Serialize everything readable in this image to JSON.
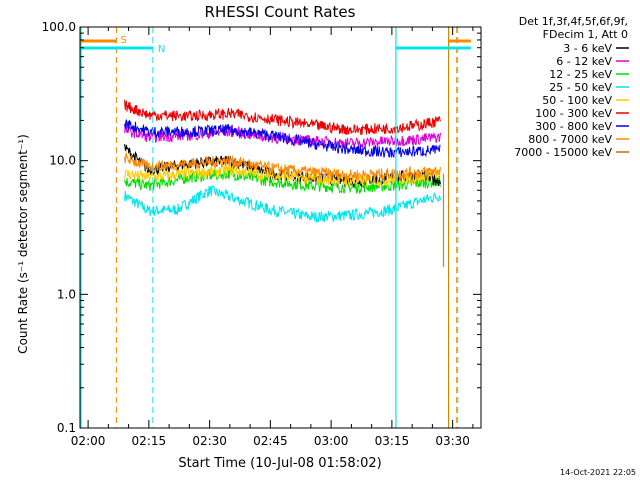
{
  "chart_data": {
    "type": "line",
    "title": "RHESSI Count Rates",
    "xlabel": "Start Time (10-Jul-08 01:58:02)",
    "ylabel": "Count Rate (s⁻¹ detector segment⁻¹)",
    "y_scale": "log",
    "ylim": [
      0.1,
      100
    ],
    "xlim": [
      "01:58",
      "03:37"
    ],
    "x_ticks": [
      "02:00",
      "02:15",
      "02:30",
      "02:45",
      "03:00",
      "03:15",
      "03:30"
    ],
    "y_ticks": [
      "0.1",
      "1.0",
      "10.0",
      "100.0"
    ],
    "grid": false,
    "legend_position": "right",
    "legend_header": [
      "Det 1f,3f,4f,5f,6f,9f,",
      "FDecim 1, Att 0"
    ],
    "data_start": "02:09",
    "data_end": "03:27",
    "series": [
      {
        "name": "3 - 6 keV",
        "color": "#000000",
        "x": [
          "02:09",
          "02:15",
          "02:25",
          "02:35",
          "02:45",
          "02:55",
          "03:05",
          "03:15",
          "03:22",
          "03:27"
        ],
        "values": [
          12.5,
          8.5,
          9.5,
          10.0,
          8.0,
          7.5,
          7.0,
          7.5,
          7.8,
          7.0
        ]
      },
      {
        "name": "6 - 12 keV",
        "color": "#dd00dd",
        "x": [
          "02:09",
          "02:15",
          "02:25",
          "02:35",
          "02:45",
          "02:55",
          "03:05",
          "03:15",
          "03:22",
          "03:27"
        ],
        "values": [
          17.0,
          15.0,
          15.5,
          16.5,
          15.0,
          14.0,
          13.5,
          14.0,
          14.5,
          15.0
        ]
      },
      {
        "name": "12 - 25 keV",
        "color": "#00dd00",
        "x": [
          "02:09",
          "02:15",
          "02:25",
          "02:35",
          "02:45",
          "02:55",
          "03:05",
          "03:15",
          "03:22",
          "03:27"
        ],
        "values": [
          7.0,
          6.5,
          7.5,
          8.0,
          7.0,
          6.5,
          6.3,
          6.5,
          6.8,
          7.0
        ]
      },
      {
        "name": "25 - 50 keV",
        "color": "#00e5ee",
        "x": [
          "02:09",
          "02:15",
          "02:22",
          "02:30",
          "02:38",
          "02:45",
          "02:55",
          "03:05",
          "03:15",
          "03:22",
          "03:27"
        ],
        "values": [
          5.5,
          4.2,
          4.3,
          6.0,
          5.0,
          4.3,
          3.8,
          3.9,
          4.3,
          5.0,
          5.5
        ]
      },
      {
        "name": "50 - 100 keV",
        "color": "#ffcc00",
        "x": [
          "02:09",
          "02:15",
          "02:25",
          "02:35",
          "02:45",
          "02:55",
          "03:05",
          "03:15",
          "03:22",
          "03:27"
        ],
        "values": [
          8.0,
          7.5,
          8.0,
          8.5,
          7.8,
          7.3,
          7.0,
          7.2,
          7.5,
          8.0
        ]
      },
      {
        "name": "100 - 300 keV",
        "color": "#ee0000",
        "x": [
          "02:09",
          "02:15",
          "02:25",
          "02:35",
          "02:45",
          "02:55",
          "03:05",
          "03:15",
          "03:22",
          "03:27"
        ],
        "values": [
          26.0,
          22.0,
          21.5,
          22.5,
          20.5,
          18.5,
          17.0,
          17.5,
          18.5,
          20.0
        ]
      },
      {
        "name": "300 - 800 keV",
        "color": "#0000ee",
        "x": [
          "02:09",
          "02:15",
          "02:25",
          "02:35",
          "02:45",
          "02:55",
          "03:05",
          "03:15",
          "03:22",
          "03:27"
        ],
        "values": [
          19.0,
          16.5,
          16.5,
          17.0,
          15.5,
          13.5,
          12.0,
          11.5,
          11.8,
          12.0
        ]
      },
      {
        "name": "800 - 7000 keV",
        "color": "#ff8800",
        "x": [
          "02:09",
          "02:15",
          "02:25",
          "02:35",
          "02:45",
          "02:55",
          "03:05",
          "03:15",
          "03:22",
          "03:27"
        ],
        "values": [
          10.5,
          9.0,
          9.5,
          10.0,
          8.8,
          8.2,
          7.8,
          8.0,
          8.2,
          8.5
        ]
      },
      {
        "name": "7000 - 15000 keV",
        "color": "#bb7700",
        "x": [],
        "values": []
      }
    ],
    "annotations": {
      "markers": [
        {
          "label": "S",
          "color": "#ff8800",
          "style": "dashed"
        },
        {
          "label": "N",
          "color": "#00e5ee",
          "style": "dashed"
        }
      ]
    },
    "timestamp": "14-Oct-2021 22:05"
  }
}
